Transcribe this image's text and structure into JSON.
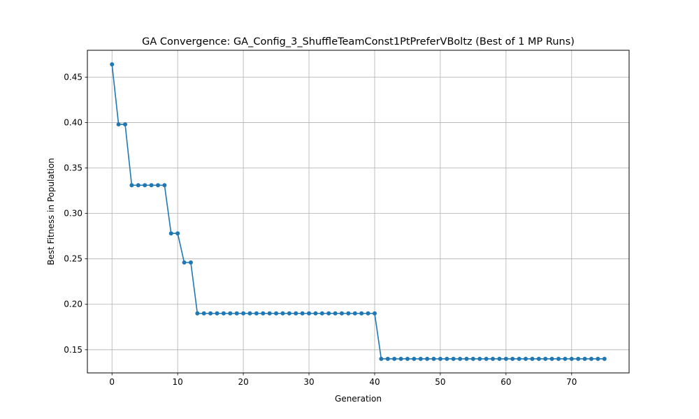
{
  "chart_data": {
    "type": "line",
    "title": "GA Convergence: GA_Config_3_ShuffleTeamConst1PtPreferVBoltz (Best of 1 MP Runs)",
    "xlabel": "Generation",
    "ylabel": "Best Fitness in Population",
    "xlim": [
      -3.75,
      78.75
    ],
    "ylim": [
      0.1245,
      0.4795
    ],
    "xticks": [
      0,
      10,
      20,
      30,
      40,
      50,
      60,
      70
    ],
    "yticks": [
      0.15,
      0.2,
      0.25,
      0.3,
      0.35,
      0.4,
      0.45
    ],
    "ytick_labels": [
      "0.15",
      "0.20",
      "0.25",
      "0.30",
      "0.35",
      "0.40",
      "0.45"
    ],
    "grid": true,
    "series": [
      {
        "color": "#1f77b4",
        "marker": "circle",
        "x": [
          0,
          1,
          2,
          3,
          4,
          5,
          6,
          7,
          8,
          9,
          10,
          11,
          12,
          13,
          14,
          15,
          16,
          17,
          18,
          19,
          20,
          21,
          22,
          23,
          24,
          25,
          26,
          27,
          28,
          29,
          30,
          31,
          32,
          33,
          34,
          35,
          36,
          37,
          38,
          39,
          40,
          41,
          42,
          43,
          44,
          45,
          46,
          47,
          48,
          49,
          50,
          51,
          52,
          53,
          54,
          55,
          56,
          57,
          58,
          59,
          60,
          61,
          62,
          63,
          64,
          65,
          66,
          67,
          68,
          69,
          70,
          71,
          72,
          73,
          74,
          75
        ],
        "values": [
          0.464,
          0.398,
          0.398,
          0.331,
          0.331,
          0.331,
          0.331,
          0.331,
          0.331,
          0.278,
          0.278,
          0.246,
          0.246,
          0.19,
          0.19,
          0.19,
          0.19,
          0.19,
          0.19,
          0.19,
          0.19,
          0.19,
          0.19,
          0.19,
          0.19,
          0.19,
          0.19,
          0.19,
          0.19,
          0.19,
          0.19,
          0.19,
          0.19,
          0.19,
          0.19,
          0.19,
          0.19,
          0.19,
          0.19,
          0.19,
          0.19,
          0.14,
          0.14,
          0.14,
          0.14,
          0.14,
          0.14,
          0.14,
          0.14,
          0.14,
          0.14,
          0.14,
          0.14,
          0.14,
          0.14,
          0.14,
          0.14,
          0.14,
          0.14,
          0.14,
          0.14,
          0.14,
          0.14,
          0.14,
          0.14,
          0.14,
          0.14,
          0.14,
          0.14,
          0.14,
          0.14,
          0.14,
          0.14,
          0.14,
          0.14,
          0.14
        ]
      }
    ]
  }
}
